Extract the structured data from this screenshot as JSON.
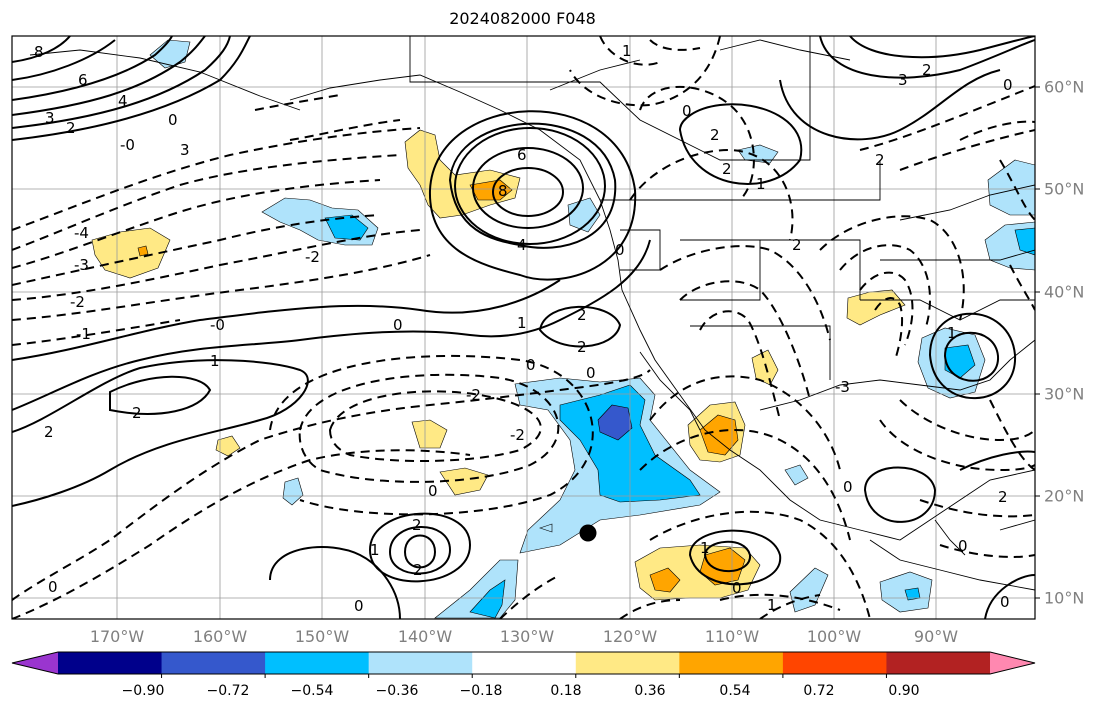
{
  "title": "2024082000 F048",
  "lon_labels": [
    "170°W",
    "160°W",
    "150°W",
    "140°W",
    "130°W",
    "120°W",
    "110°W",
    "100°W",
    "90°W"
  ],
  "lat_labels": [
    "60°N",
    "50°N",
    "40°N",
    "30°N",
    "20°N",
    "10°N"
  ],
  "colorbar": {
    "ticks": [
      "−0.90",
      "−0.72",
      "−0.54",
      "−0.36",
      "−0.18",
      "0.18",
      "0.36",
      "0.54",
      "0.72",
      "0.90"
    ],
    "colors": [
      "#9a35cf",
      "#00008b",
      "#3558cc",
      "#00bfff",
      "#afe3fb",
      "#ffffff",
      "#ffe985",
      "#ffa500",
      "#ff4500",
      "#b22222",
      "#ff88b0"
    ]
  },
  "marker": "black-dot",
  "contour_labels": [
    "8",
    "6",
    "4",
    "3",
    "2",
    "1",
    "0",
    "-1",
    "-2",
    "-3",
    "-4",
    "-0",
    "1",
    "2",
    "0",
    "-3",
    "-2",
    "-1"
  ]
}
